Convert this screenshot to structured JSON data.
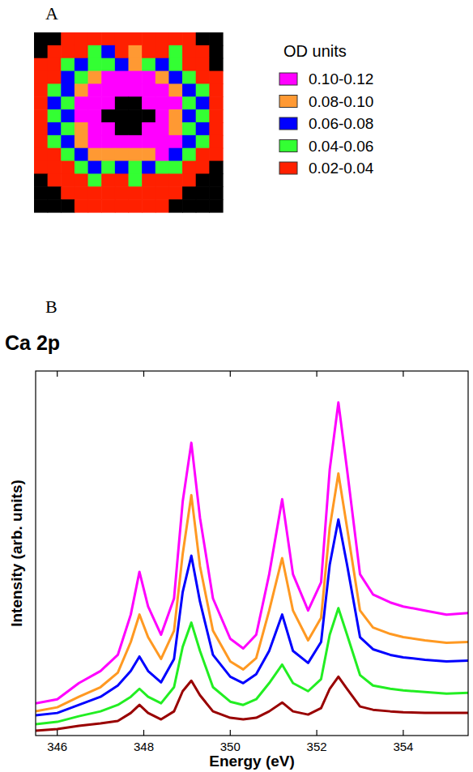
{
  "chart_data": [
    {
      "type": "heatmap",
      "panel_label": "A",
      "legend_title": "OD units",
      "classes": [
        {
          "label": "0.10-0.12",
          "min": 0.1,
          "max": 0.12,
          "color": "#ff00ff"
        },
        {
          "label": "0.08-0.10",
          "min": 0.08,
          "max": 0.1,
          "color": "#ff9933"
        },
        {
          "label": "0.06-0.08",
          "min": 0.06,
          "max": 0.08,
          "color": "#0000ff"
        },
        {
          "label": "0.04-0.06",
          "min": 0.04,
          "max": 0.06,
          "color": "#33ff33"
        },
        {
          "label": "0.02-0.04",
          "min": 0.02,
          "max": 0.04,
          "color": "#ff2000"
        }
      ],
      "cells": [
        [
          0,
          0,
          0.03,
          0.03,
          0.03,
          0.03,
          0.03,
          0.03,
          0.03,
          0.03,
          0.03,
          0.03,
          0,
          0
        ],
        [
          0,
          0.03,
          0.03,
          0.03,
          0.05,
          0.07,
          0.03,
          0.09,
          0.03,
          0.03,
          0.05,
          0.03,
          0.03,
          0
        ],
        [
          0.03,
          0.03,
          0.05,
          0.07,
          0.05,
          0.05,
          0.07,
          0.09,
          0.05,
          0.07,
          0.05,
          0.03,
          0.03,
          0
        ],
        [
          0.03,
          0.03,
          0.07,
          0.05,
          0.09,
          0.11,
          0.11,
          0.11,
          0.11,
          0.09,
          0.07,
          0.05,
          0.03,
          0.03
        ],
        [
          0.03,
          0.05,
          0.07,
          0.09,
          0.11,
          0.11,
          0.11,
          0.11,
          0.11,
          0.11,
          0.09,
          0.07,
          0.05,
          0.03
        ],
        [
          0.03,
          0.07,
          0.05,
          0.11,
          0.11,
          0.11,
          0,
          0,
          0.11,
          0.11,
          0.11,
          0.05,
          0.07,
          0.03
        ],
        [
          0.03,
          0.05,
          0.07,
          0.11,
          0.11,
          0,
          0,
          0,
          0,
          0.11,
          0.09,
          0.07,
          0.05,
          0.03
        ],
        [
          0.03,
          0.07,
          0.05,
          0.09,
          0.11,
          0.11,
          0,
          0,
          0.11,
          0.11,
          0.09,
          0.05,
          0.07,
          0.03
        ],
        [
          0.03,
          0.05,
          0.07,
          0.09,
          0.11,
          0.11,
          0.11,
          0.11,
          0.11,
          0.11,
          0.11,
          0.07,
          0.05,
          0.03
        ],
        [
          0.03,
          0.03,
          0.05,
          0.07,
          0.09,
          0.09,
          0.09,
          0.09,
          0.09,
          0.11,
          0.07,
          0.05,
          0.03,
          0.03
        ],
        [
          0.03,
          0.03,
          0.03,
          0.05,
          0.07,
          0.05,
          0.07,
          0.05,
          0.07,
          0.05,
          0.05,
          0.03,
          0.03,
          0
        ],
        [
          0,
          0.03,
          0.03,
          0.03,
          0.05,
          0.03,
          0.03,
          0.05,
          0.03,
          0.03,
          0.03,
          0.03,
          0,
          0
        ],
        [
          0,
          0,
          0.03,
          0.03,
          0.03,
          0.03,
          0.03,
          0.03,
          0.03,
          0.03,
          0.03,
          0,
          0,
          0
        ],
        [
          0,
          0,
          0,
          0.03,
          0.03,
          0.03,
          0.03,
          0.03,
          0.03,
          0.03,
          0,
          0,
          0,
          0
        ]
      ]
    },
    {
      "type": "line",
      "panel_label": "B",
      "title": "Ca 2p",
      "x_label": "Energy (eV)",
      "y_label": "Intensity (arb. units)",
      "xlim": [
        345.5,
        355.5
      ],
      "xticks": [
        346,
        348,
        350,
        352,
        354
      ],
      "ylim": [
        0,
        452
      ],
      "tick_labels": "x",
      "x": [
        345.5,
        346,
        346.5,
        347,
        347.4,
        347.7,
        347.9,
        348.1,
        348.4,
        348.7,
        348.9,
        349.1,
        349.3,
        349.6,
        350,
        350.3,
        350.6,
        350.9,
        351.2,
        351.45,
        351.8,
        352.1,
        352.3,
        352.5,
        352.7,
        353,
        353.3,
        353.7,
        354,
        354.5,
        355,
        355.5
      ],
      "series": [
        {
          "color": "#ff00ff",
          "values": [
            40,
            45,
            65,
            80,
            100,
            150,
            203,
            160,
            125,
            170,
            290,
            363,
            270,
            170,
            120,
            108,
            125,
            200,
            293,
            200,
            155,
            190,
            330,
            413,
            330,
            200,
            175,
            165,
            160,
            155,
            150,
            152
          ]
        },
        {
          "color": "#ff9922",
          "values": [
            30,
            35,
            48,
            60,
            78,
            116,
            150,
            122,
            95,
            130,
            225,
            298,
            210,
            130,
            92,
            82,
            96,
            155,
            220,
            155,
            118,
            146,
            258,
            325,
            258,
            155,
            134,
            126,
            122,
            118,
            115,
            116
          ]
        },
        {
          "color": "#0000ff",
          "values": [
            25,
            28,
            38,
            48,
            62,
            80,
            98,
            80,
            66,
            95,
            178,
            223,
            166,
            100,
            73,
            65,
            76,
            105,
            150,
            105,
            90,
            116,
            212,
            268,
            212,
            122,
            107,
            100,
            97,
            94,
            92,
            93
          ]
        },
        {
          "color": "#22ee22",
          "values": [
            14,
            17,
            24,
            30,
            38,
            48,
            58,
            48,
            40,
            60,
            110,
            140,
            105,
            60,
            42,
            38,
            45,
            65,
            88,
            65,
            55,
            70,
            125,
            158,
            125,
            75,
            62,
            58,
            56,
            54,
            52,
            53
          ]
        },
        {
          "color": "#990000",
          "values": [
            6,
            8,
            12,
            15,
            18,
            28,
            38,
            28,
            20,
            30,
            55,
            68,
            50,
            30,
            22,
            20,
            22,
            30,
            41,
            30,
            26,
            34,
            58,
            73,
            58,
            36,
            32,
            30,
            29,
            28,
            28,
            28
          ]
        }
      ]
    }
  ]
}
